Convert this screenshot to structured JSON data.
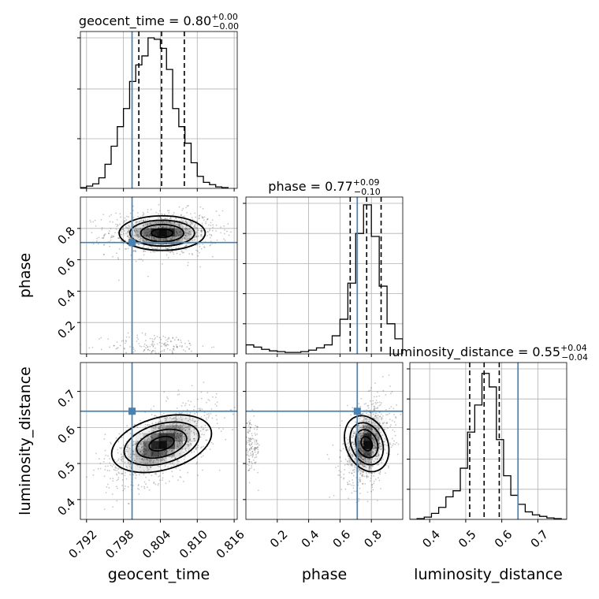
{
  "chart_data": {
    "type": "scatter",
    "subtype": "corner-plot",
    "parameters": [
      "geocent_time",
      "phase",
      "luminosity_distance"
    ],
    "colors": {
      "truth": "#4682b4",
      "histogram": "#000000",
      "quantile": "#000000",
      "contour": "#000000",
      "grid": "#b0b0b0"
    },
    "grid": true,
    "diagonal": [
      {
        "param": "geocent_time",
        "title": "geocent_time = 0.80",
        "title_sup": "+0.00",
        "title_sub": "−0.00",
        "range": [
          0.791,
          0.8165
        ],
        "median": 0.8042,
        "quantiles": [
          0.8005,
          0.8079
        ],
        "truth": 0.7994,
        "ymax": 1.0,
        "bins_edges": [
          0.791,
          0.792,
          0.793,
          0.794,
          0.795,
          0.796,
          0.797,
          0.798,
          0.799,
          0.8,
          0.801,
          0.802,
          0.803,
          0.804,
          0.805,
          0.806,
          0.807,
          0.808,
          0.809,
          0.81,
          0.811,
          0.812,
          0.813,
          0.814,
          0.815
        ],
        "counts": [
          0.005,
          0.015,
          0.03,
          0.07,
          0.16,
          0.28,
          0.41,
          0.53,
          0.71,
          0.82,
          0.88,
          1.0,
          0.99,
          0.93,
          0.79,
          0.53,
          0.41,
          0.3,
          0.17,
          0.08,
          0.04,
          0.025,
          0.01,
          0.005
        ],
        "ticks": [],
        "ytick_fractions": [
          0.33,
          0.66,
          1.0
        ]
      },
      {
        "param": "phase",
        "title": "phase = 0.77",
        "title_sup": "+0.09",
        "title_sub": "−0.10",
        "range": [
          0.0,
          1.0
        ],
        "median": 0.77,
        "quantiles": [
          0.665,
          0.862
        ],
        "truth": 0.71,
        "ymax": 1.0,
        "bins_edges": [
          0.0,
          0.05,
          0.1,
          0.15,
          0.2,
          0.25,
          0.3,
          0.35,
          0.4,
          0.45,
          0.5,
          0.55,
          0.6,
          0.65,
          0.7,
          0.75,
          0.8,
          0.85,
          0.9,
          0.95,
          1.0
        ],
        "counts": [
          0.06,
          0.045,
          0.03,
          0.02,
          0.015,
          0.01,
          0.01,
          0.015,
          0.025,
          0.04,
          0.06,
          0.12,
          0.23,
          0.47,
          0.8,
          0.99,
          0.78,
          0.45,
          0.2,
          0.1
        ],
        "ticks": [],
        "ytick_fractions": [
          0.2,
          0.4,
          0.6,
          0.8,
          1.0
        ]
      },
      {
        "param": "luminosity_distance",
        "title": "luminosity_distance = 0.55",
        "title_sup": "+0.04",
        "title_sub": "−0.04",
        "range": [
          0.345,
          0.78
        ],
        "median": 0.551,
        "quantiles": [
          0.511,
          0.593
        ],
        "truth": 0.645,
        "ymax": 1.0,
        "bins_edges": [
          0.345,
          0.365,
          0.385,
          0.405,
          0.425,
          0.445,
          0.465,
          0.485,
          0.505,
          0.525,
          0.545,
          0.565,
          0.585,
          0.605,
          0.625,
          0.645,
          0.665,
          0.685,
          0.705,
          0.725,
          0.745,
          0.765,
          0.78
        ],
        "counts": [
          0.0,
          0.005,
          0.015,
          0.04,
          0.08,
          0.15,
          0.19,
          0.34,
          0.58,
          0.76,
          0.97,
          0.88,
          0.53,
          0.29,
          0.16,
          0.1,
          0.05,
          0.03,
          0.02,
          0.01,
          0.005,
          0.0
        ],
        "ticks": [
          "0.4",
          "0.5",
          "0.6",
          "0.7"
        ],
        "tick_values": [
          0.4,
          0.5,
          0.6,
          0.7
        ],
        "ytick_fractions": [
          0.2,
          0.4,
          0.6,
          0.8,
          1.0
        ]
      }
    ],
    "axes": {
      "geocent_time": {
        "label": "geocent_time",
        "range": [
          0.791,
          0.8165
        ],
        "tick_values": [
          0.792,
          0.798,
          0.804,
          0.81,
          0.816
        ],
        "tick_labels": [
          "0.792",
          "0.798",
          "0.804",
          "0.810",
          "0.816"
        ]
      },
      "phase": {
        "label": "phase",
        "range": [
          0.0,
          1.0
        ],
        "tick_values": [
          0.2,
          0.4,
          0.6,
          0.8
        ],
        "tick_labels": [
          "0.2",
          "0.4",
          "0.6",
          "0.8"
        ]
      },
      "luminosity_distance": {
        "label": "luminosity_distance",
        "range": [
          0.345,
          0.78
        ],
        "tick_values": [
          0.4,
          0.5,
          0.6,
          0.7
        ],
        "tick_labels": [
          "0.4",
          "0.5",
          "0.6",
          "0.7"
        ]
      }
    },
    "truth_values": {
      "geocent_time": 0.7994,
      "phase": 0.71,
      "luminosity_distance": 0.645
    },
    "off_diagonal": [
      {
        "x": "geocent_time",
        "y": "phase",
        "peak": [
          0.8043,
          0.77
        ],
        "spread": [
          0.0035,
          0.055
        ],
        "contour_levels_scale": [
          0.5,
          1.0,
          1.5,
          2.0
        ],
        "secondary_cluster": {
          "center": [
            0.8035,
            0.05
          ],
          "spread": [
            0.004,
            0.04
          ]
        }
      },
      {
        "x": "geocent_time",
        "y": "luminosity_distance",
        "peak": [
          0.8042,
          0.555
        ],
        "spread": [
          0.0035,
          0.045
        ],
        "correlation": 0.55,
        "contour_levels_scale": [
          0.5,
          1.0,
          1.5,
          2.0
        ]
      },
      {
        "x": "phase",
        "y": "luminosity_distance",
        "peak": [
          0.77,
          0.555
        ],
        "spread": [
          0.06,
          0.045
        ],
        "correlation": 0.3,
        "contour_levels_scale": [
          0.5,
          1.0,
          1.5,
          2.0
        ],
        "secondary_cluster": {
          "center": [
            0.03,
            0.545
          ],
          "spread": [
            0.03,
            0.035
          ]
        }
      }
    ]
  }
}
